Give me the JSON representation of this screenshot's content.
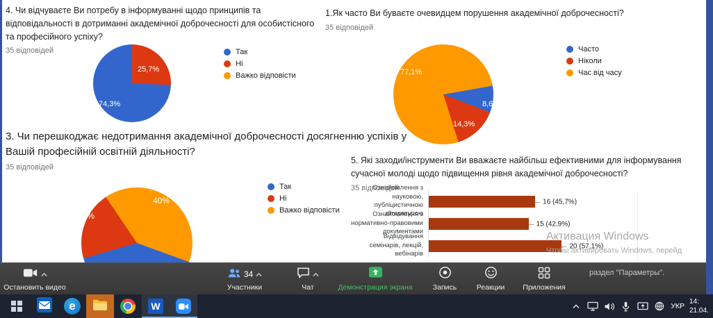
{
  "chart_data": {
    "q4": {
      "type": "pie",
      "title": "4. Чи відчуваєте Ви потребу в інформуванні щодо принципів та відповідальності в дотриманні академічної доброчесності для особистісного та професійного успіху?",
      "responses": "35 відповідей",
      "categories": [
        "Так",
        "Ні",
        "Важко відповісти"
      ],
      "values": [
        74.3,
        25.7,
        0
      ],
      "colors": [
        "#3366cc",
        "#dc3912",
        "#ff9900"
      ],
      "value_labels": [
        "74,3%",
        "25,7%"
      ],
      "slices": [
        {
          "color": "#dc3912",
          "from": 0,
          "to": 92.5
        },
        {
          "color": "#3366cc",
          "from": 92.5,
          "to": 360
        }
      ]
    },
    "q1": {
      "type": "pie",
      "title": "1.Як часто Ви буваєте очевидцем порушення академічної доброчесності?",
      "responses": "35 відповідей",
      "categories": [
        "Часто",
        "Ніколи",
        "Час від часу"
      ],
      "values": [
        8.6,
        14.3,
        77.1
      ],
      "colors": [
        "#3366cc",
        "#dc3912",
        "#ff9900"
      ],
      "value_labels": [
        "77,1%",
        "8,6%",
        "14,3%"
      ],
      "slices": [
        {
          "color": "#ff9900",
          "from": 0,
          "to": 80
        },
        {
          "color": "#3366cc",
          "from": 80,
          "to": 111
        },
        {
          "color": "#dc3912",
          "from": 111,
          "to": 162.5
        },
        {
          "color": "#ff9900",
          "from": 162.5,
          "to": 360
        }
      ]
    },
    "q3": {
      "type": "pie",
      "title": "3. Чи перешкоджає недотримання академічної доброчесності досягненню успіхів у Вашій професійній освітній діяльності?",
      "responses": "35 відповідей",
      "categories": [
        "Так",
        "Ні",
        "Важко відповісти"
      ],
      "values": [
        40,
        20,
        40
      ],
      "colors": [
        "#3366cc",
        "#dc3912",
        "#ff9900"
      ],
      "value_labels": [
        "40%",
        "20%"
      ],
      "slices": [
        {
          "color": "#ff9900",
          "from": 0,
          "to": 110
        },
        {
          "color": "#3366cc",
          "from": 110,
          "to": 254
        },
        {
          "color": "#dc3912",
          "from": 254,
          "to": 326
        },
        {
          "color": "#ff9900",
          "from": 326,
          "to": 360
        }
      ]
    },
    "q5": {
      "type": "bar",
      "title": "5. Які заходи/інструменти Ви вважаєте найбільш ефективними для інформування сучасної молоді щодо підвищення рівня академічної доброчесності?",
      "responses": "35 відповідей",
      "bar_color": "#a8390e",
      "axis_max": 20.9,
      "bars": [
        {
          "category": "Ознайомлення з науковою, публіцистичною літературою",
          "value": 16,
          "label": "16 (45,7%)"
        },
        {
          "category": "Ознайомлення з нормативно-правовими документами",
          "value": 15,
          "label": "15 (42,9%)"
        },
        {
          "category": "Відвідування семінарів, лекцій, вебінарів",
          "value": 20,
          "label": "20 (57,1%)"
        }
      ]
    }
  },
  "watermark": {
    "line1": "Активация Windows",
    "line2": "Чтобы активировать Windows, перейд",
    "line3": "раздел \"Параметры\"."
  },
  "zoom_toolbar": {
    "stop_video": "Остановить видео",
    "participants": "Участники",
    "participants_count": "34",
    "chat": "Чат",
    "share": "Демонстрация экрана",
    "record": "Запись",
    "reactions": "Реакции",
    "apps": "Приложения",
    "share_green": "#35b35f"
  },
  "taskbar": {
    "word_icon_letter": "W",
    "edge_icon_letter": "e",
    "lang": "УКР",
    "time": "14:",
    "date": "21.04."
  }
}
